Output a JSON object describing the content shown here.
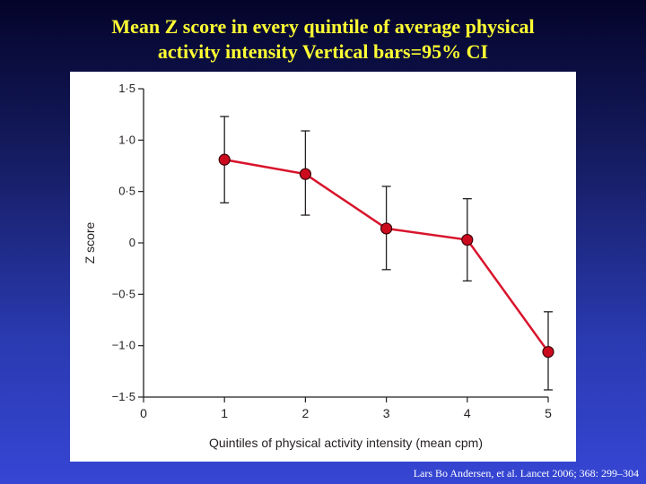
{
  "title_line1": "Mean Z score in every quintile of average physical",
  "title_line2": "activity intensity Vertical bars=95% CI",
  "citation": "Lars Bo Andersen, et al. Lancet 2006; 368: 299–304",
  "colors": {
    "line": "#d8142c",
    "marker": "#cc0a1e",
    "axis": "#231f20",
    "title": "#ffff33"
  },
  "chart_data": {
    "type": "line",
    "xlabel": "Quintiles of physical activity intensity (mean cpm)",
    "ylabel": "Z score",
    "xlim": [
      0,
      5
    ],
    "ylim": [
      -1.5,
      1.5
    ],
    "x_ticks": [
      0,
      1,
      2,
      3,
      4,
      5
    ],
    "x_tick_labels": [
      "0",
      "1",
      "2",
      "3",
      "4",
      "5"
    ],
    "y_ticks": [
      1.5,
      1.0,
      0.5,
      0,
      -0.5,
      -1.0,
      -1.5
    ],
    "y_tick_labels": [
      "1·5",
      "1·0",
      "0·5",
      "0",
      "−0·5",
      "−1·0",
      "−1·5"
    ],
    "series": [
      {
        "x": [
          1,
          2,
          3,
          4,
          5
        ],
        "values": [
          0.81,
          0.67,
          0.14,
          0.03,
          -1.06
        ],
        "ci_upper": [
          1.23,
          1.09,
          0.55,
          0.43,
          -0.67
        ],
        "ci_lower": [
          0.39,
          0.27,
          -0.26,
          -0.37,
          -1.43
        ]
      }
    ],
    "grid": false,
    "legend": false
  }
}
